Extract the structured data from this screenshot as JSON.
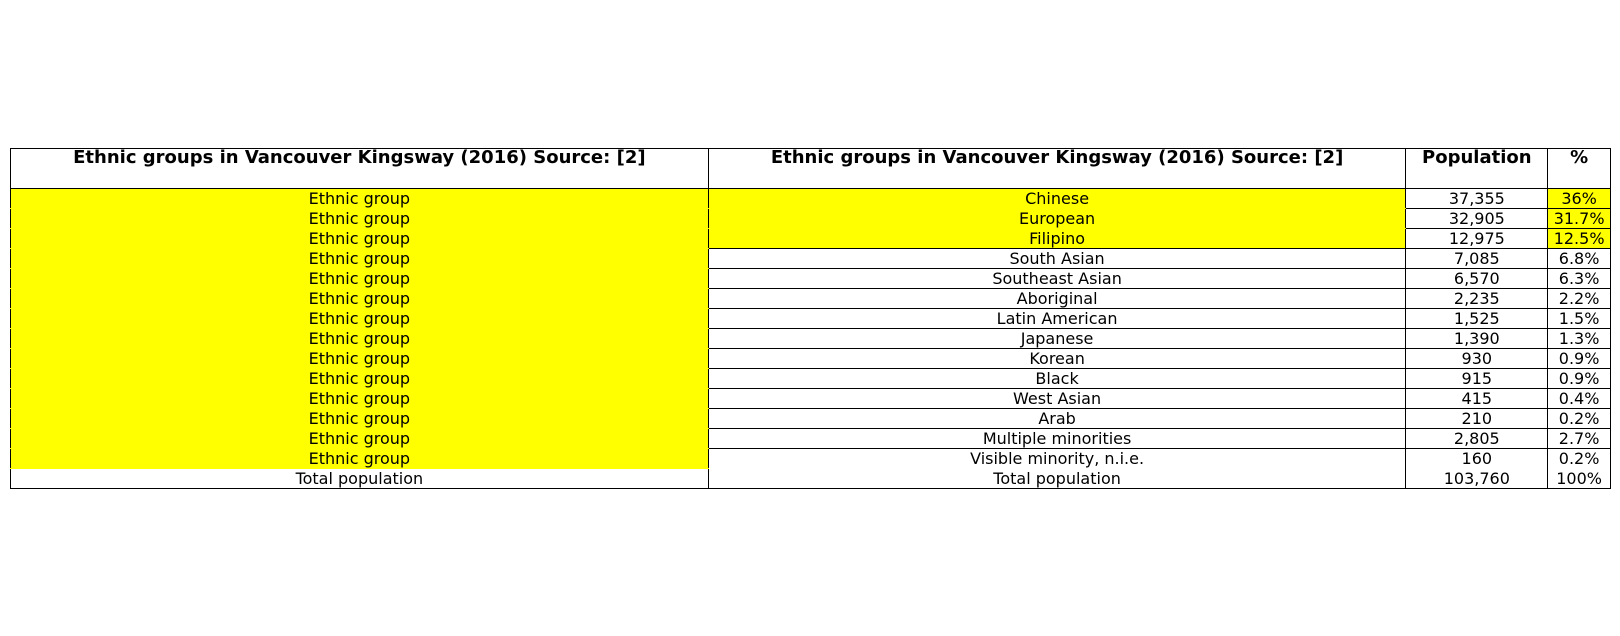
{
  "chart_data": {
    "type": "table",
    "columns": [
      "Ethnic groups in Vancouver Kingsway (2016) Source: [2]",
      "Ethnic groups in Vancouver Kingsway (2016) Source: [2]",
      "Population",
      "%"
    ],
    "rows": [
      {
        "group": "Ethnic group",
        "name": "Chinese",
        "population": "37,355",
        "percent": "36%"
      },
      {
        "group": "Ethnic group",
        "name": "European",
        "population": "32,905",
        "percent": "31.7%"
      },
      {
        "group": "Ethnic group",
        "name": "Filipino",
        "population": "12,975",
        "percent": "12.5%"
      },
      {
        "group": "Ethnic group",
        "name": "South Asian",
        "population": "7,085",
        "percent": "6.8%"
      },
      {
        "group": "Ethnic group",
        "name": "Southeast Asian",
        "population": "6,570",
        "percent": "6.3%"
      },
      {
        "group": "Ethnic group",
        "name": "Aboriginal",
        "population": "2,235",
        "percent": "2.2%"
      },
      {
        "group": "Ethnic group",
        "name": "Latin American",
        "population": "1,525",
        "percent": "1.5%"
      },
      {
        "group": "Ethnic group",
        "name": "Japanese",
        "population": "1,390",
        "percent": "1.3%"
      },
      {
        "group": "Ethnic group",
        "name": "Korean",
        "population": "930",
        "percent": "0.9%"
      },
      {
        "group": "Ethnic group",
        "name": "Black",
        "population": "915",
        "percent": "0.9%"
      },
      {
        "group": "Ethnic group",
        "name": "West Asian",
        "population": "415",
        "percent": "0.4%"
      },
      {
        "group": "Ethnic group",
        "name": "Arab",
        "population": "210",
        "percent": "0.2%"
      },
      {
        "group": "Ethnic group",
        "name": "Multiple minorities",
        "population": "2,805",
        "percent": "2.7%"
      },
      {
        "group": "Ethnic group",
        "name": "Visible minority, n.i.e.",
        "population": "160",
        "percent": "0.2%"
      },
      {
        "group": "Total population",
        "name": "Total population",
        "population": "103,760",
        "percent": "100%"
      }
    ]
  },
  "highlight_color": "#ffff00"
}
